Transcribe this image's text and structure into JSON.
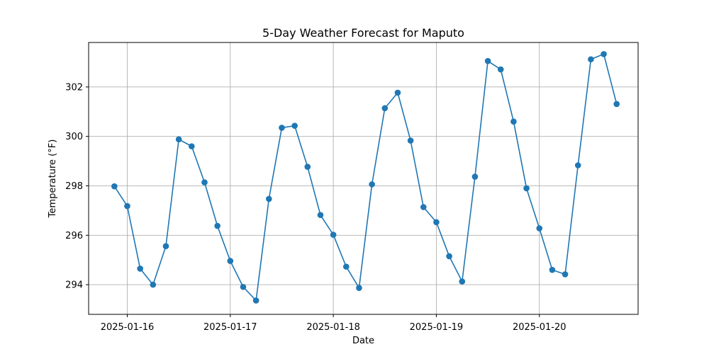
{
  "chart_data": {
    "type": "line",
    "title": "5-Day Weather Forecast for Maputo",
    "xlabel": "Date",
    "ylabel": "Temperature (°F)",
    "xlim": [
      "2025-01-15 15:00",
      "2025-01-20 23:00"
    ],
    "ylim": [
      292.8,
      303.8
    ],
    "x_ticks": [
      "2025-01-16",
      "2025-01-17",
      "2025-01-18",
      "2025-01-19",
      "2025-01-20"
    ],
    "y_ticks": [
      294,
      296,
      298,
      300,
      302
    ],
    "grid": true,
    "color": "#1f77b4",
    "series": [
      {
        "x": [
          "2025-01-15 21:00",
          "2025-01-16 00:00",
          "2025-01-16 03:00",
          "2025-01-16 06:00",
          "2025-01-16 09:00",
          "2025-01-16 12:00",
          "2025-01-16 15:00",
          "2025-01-16 18:00",
          "2025-01-16 21:00",
          "2025-01-17 00:00",
          "2025-01-17 03:00",
          "2025-01-17 06:00",
          "2025-01-17 09:00",
          "2025-01-17 12:00",
          "2025-01-17 15:00",
          "2025-01-17 18:00",
          "2025-01-17 21:00",
          "2025-01-18 00:00",
          "2025-01-18 03:00",
          "2025-01-18 06:00",
          "2025-01-18 09:00",
          "2025-01-18 12:00",
          "2025-01-18 15:00",
          "2025-01-18 18:00",
          "2025-01-18 21:00",
          "2025-01-19 00:00",
          "2025-01-19 03:00",
          "2025-01-19 06:00",
          "2025-01-19 09:00",
          "2025-01-19 12:00",
          "2025-01-19 15:00",
          "2025-01-19 18:00",
          "2025-01-19 21:00",
          "2025-01-20 00:00",
          "2025-01-20 03:00",
          "2025-01-20 06:00",
          "2025-01-20 09:00",
          "2025-01-20 12:00",
          "2025-01-20 15:00",
          "2025-01-20 18:00"
        ],
        "y": [
          297.98,
          297.18,
          294.65,
          294.0,
          295.56,
          299.88,
          299.6,
          298.14,
          296.38,
          294.96,
          293.91,
          293.36,
          297.47,
          300.35,
          300.43,
          298.77,
          296.82,
          296.02,
          294.73,
          293.87,
          298.06,
          301.14,
          301.77,
          299.83,
          297.14,
          296.53,
          295.15,
          294.13,
          298.37,
          303.05,
          302.71,
          300.6,
          297.9,
          296.28,
          294.6,
          294.42,
          298.83,
          303.12,
          303.33,
          301.31
        ]
      }
    ]
  }
}
